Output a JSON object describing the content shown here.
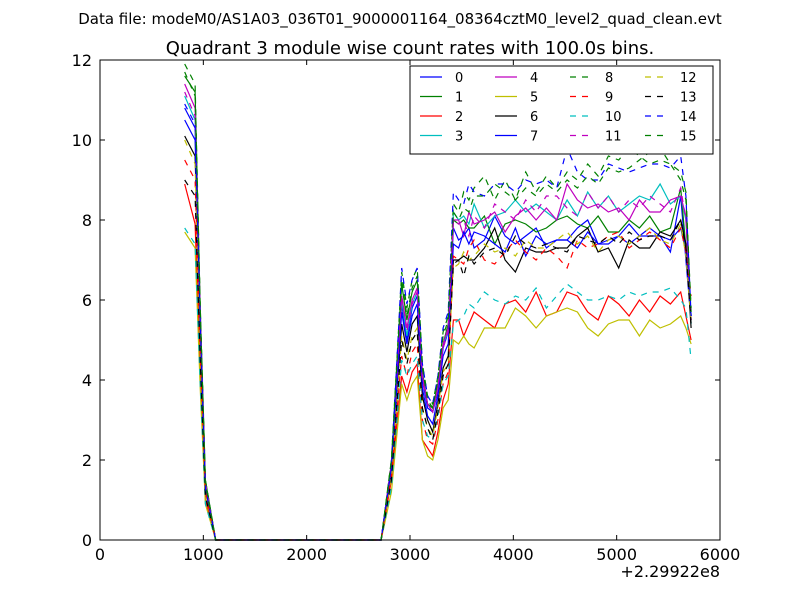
{
  "header": {
    "data_file": "Data file: modeM0/AS1A03_036T01_9000001164_08364cztM0_level2_quad_clean.evt"
  },
  "chart_data": {
    "type": "line",
    "title": "Quadrant 3 module wise count rates with 100.0s bins.",
    "xlabel": "",
    "ylabel": "",
    "x_offset_label": "+2.29922e8",
    "xlim": [
      0,
      6000
    ],
    "ylim": [
      0,
      12
    ],
    "x_ticks": [
      0,
      1000,
      2000,
      3000,
      4000,
      5000,
      6000
    ],
    "x_tick_labels": [
      "0",
      "1000",
      "2000",
      "3000",
      "4000",
      "5000",
      "6000"
    ],
    "y_ticks": [
      0,
      2,
      4,
      6,
      8,
      10,
      12
    ],
    "y_tick_labels": [
      "0",
      "2",
      "4",
      "6",
      "8",
      "10",
      "12"
    ],
    "grid": false,
    "legend_position": "top-right",
    "legend_columns": 4,
    "x": [
      820,
      920,
      970,
      1020,
      1120,
      1220,
      1320,
      1420,
      1520,
      1620,
      1720,
      1820,
      1920,
      2020,
      2120,
      2220,
      2320,
      2420,
      2520,
      2620,
      2720,
      2820,
      2920,
      2970,
      3020,
      3070,
      3120,
      3170,
      3220,
      3270,
      3320,
      3370,
      3420,
      3470,
      3520,
      3570,
      3620,
      3720,
      3820,
      3920,
      4020,
      4120,
      4220,
      4320,
      4420,
      4520,
      4620,
      4720,
      4820,
      4920,
      5020,
      5120,
      5220,
      5320,
      5420,
      5520,
      5620,
      5670,
      5720
    ],
    "series": [
      {
        "name": "0",
        "color": "#0000ff",
        "dash": "solid",
        "values": [
          10.8,
          10.3,
          5.5,
          1.3,
          0,
          0,
          0,
          0,
          0,
          0,
          0,
          0,
          0,
          0,
          0,
          0,
          0,
          0,
          0,
          0,
          0,
          1.8,
          5.9,
          5.0,
          5.8,
          6.1,
          4.0,
          3.3,
          3.2,
          3.7,
          4.8,
          5.2,
          7.8,
          7.5,
          7.6,
          7.8,
          7.3,
          7.5,
          8.1,
          7.6,
          7.4,
          7.6,
          7.8,
          7.3,
          7.5,
          7.5,
          7.8,
          8.0,
          7.4,
          7.5,
          7.6,
          7.9,
          7.6,
          7.8,
          7.6,
          7.2,
          8.6,
          7.0,
          5.5
        ]
      },
      {
        "name": "1",
        "color": "#008000",
        "dash": "solid",
        "values": [
          11.6,
          11.2,
          5.8,
          1.5,
          0,
          0,
          0,
          0,
          0,
          0,
          0,
          0,
          0,
          0,
          0,
          0,
          0,
          0,
          0,
          0,
          0,
          1.9,
          6.4,
          5.5,
          6.2,
          6.5,
          4.2,
          3.4,
          3.3,
          3.9,
          4.9,
          5.4,
          8.0,
          7.9,
          8.0,
          7.8,
          7.8,
          8.1,
          7.4,
          7.9,
          8.0,
          7.9,
          7.7,
          7.8,
          8.0,
          8.1,
          7.9,
          7.8,
          8.1,
          7.7,
          7.7,
          8.0,
          7.8,
          8.1,
          7.7,
          7.8,
          8.8,
          7.3,
          5.6
        ]
      },
      {
        "name": "2",
        "color": "#ff0000",
        "dash": "solid",
        "values": [
          8.9,
          7.9,
          4.2,
          1.0,
          0,
          0,
          0,
          0,
          0,
          0,
          0,
          0,
          0,
          0,
          0,
          0,
          0,
          0,
          0,
          0,
          0,
          1.5,
          4.1,
          3.7,
          4.2,
          4.4,
          2.5,
          2.3,
          2.1,
          2.7,
          3.5,
          3.9,
          5.5,
          5.5,
          5.1,
          5.4,
          5.7,
          5.5,
          5.3,
          5.9,
          6.0,
          5.7,
          6.2,
          5.6,
          5.7,
          6.2,
          6.1,
          5.7,
          5.5,
          6.1,
          5.9,
          5.6,
          6.0,
          5.7,
          6.1,
          5.9,
          6.2,
          5.6,
          5.0
        ]
      },
      {
        "name": "3",
        "color": "#00bfbf",
        "dash": "solid",
        "values": [
          11.1,
          10.5,
          5.6,
          1.4,
          0,
          0,
          0,
          0,
          0,
          0,
          0,
          0,
          0,
          0,
          0,
          0,
          0,
          0,
          0,
          0,
          0,
          1.9,
          6.0,
          5.1,
          5.9,
          6.2,
          4.1,
          3.4,
          3.2,
          3.8,
          4.9,
          5.2,
          8.2,
          8.0,
          8.1,
          7.9,
          8.4,
          7.8,
          8.1,
          8.2,
          8.5,
          8.2,
          8.4,
          8.2,
          8.0,
          8.5,
          8.1,
          8.7,
          8.3,
          8.6,
          8.2,
          8.4,
          8.6,
          8.5,
          8.9,
          8.4,
          8.6,
          8.0,
          5.4
        ]
      },
      {
        "name": "4",
        "color": "#bf00bf",
        "dash": "solid",
        "values": [
          11.4,
          10.8,
          5.7,
          1.4,
          0,
          0,
          0,
          0,
          0,
          0,
          0,
          0,
          0,
          0,
          0,
          0,
          0,
          0,
          0,
          0,
          0,
          1.9,
          6.1,
          5.3,
          6.0,
          6.3,
          4.1,
          3.4,
          3.2,
          3.8,
          4.9,
          5.3,
          8.0,
          8.0,
          7.6,
          8.2,
          7.9,
          8.0,
          8.2,
          7.7,
          8.1,
          8.3,
          8.0,
          8.3,
          8.0,
          8.9,
          8.5,
          8.3,
          8.4,
          8.2,
          8.3,
          8.0,
          8.5,
          8.2,
          8.2,
          8.5,
          8.6,
          8.1,
          5.5
        ]
      },
      {
        "name": "5",
        "color": "#bfbf00",
        "dash": "solid",
        "values": [
          7.7,
          7.3,
          3.8,
          0.9,
          0,
          0,
          0,
          0,
          0,
          0,
          0,
          0,
          0,
          0,
          0,
          0,
          0,
          0,
          0,
          0,
          0,
          1.2,
          3.9,
          3.5,
          3.9,
          4.1,
          2.5,
          2.1,
          2.0,
          2.5,
          3.3,
          3.5,
          5.0,
          4.9,
          5.1,
          4.9,
          4.8,
          5.3,
          5.3,
          5.3,
          5.8,
          5.6,
          5.3,
          5.6,
          5.7,
          5.8,
          5.7,
          5.3,
          5.1,
          5.4,
          5.5,
          5.5,
          5.1,
          5.5,
          5.3,
          5.4,
          5.6,
          5.3,
          4.9
        ]
      },
      {
        "name": "6",
        "color": "#000000",
        "dash": "solid",
        "values": [
          10.1,
          9.6,
          5.0,
          1.2,
          0,
          0,
          0,
          0,
          0,
          0,
          0,
          0,
          0,
          0,
          0,
          0,
          0,
          0,
          0,
          0,
          0,
          1.7,
          5.4,
          4.7,
          5.4,
          5.6,
          3.6,
          3.0,
          2.7,
          3.4,
          4.3,
          4.6,
          7.0,
          7.0,
          7.1,
          7.0,
          7.0,
          7.3,
          7.8,
          7.0,
          6.7,
          7.3,
          7.2,
          7.2,
          7.3,
          7.3,
          7.6,
          7.8,
          7.2,
          7.3,
          6.8,
          7.5,
          7.3,
          7.3,
          7.7,
          7.6,
          8.0,
          7.4,
          5.3
        ]
      },
      {
        "name": "7",
        "color": "#0000ff",
        "dash": "solid",
        "values": [
          10.5,
          10.0,
          5.2,
          1.3,
          0,
          0,
          0,
          0,
          0,
          0,
          0,
          0,
          0,
          0,
          0,
          0,
          0,
          0,
          0,
          0,
          0,
          1.8,
          5.7,
          4.9,
          5.6,
          5.9,
          3.8,
          3.1,
          2.9,
          3.6,
          4.6,
          4.9,
          7.4,
          7.3,
          7.7,
          7.4,
          7.7,
          7.6,
          7.4,
          7.2,
          7.8,
          7.1,
          7.6,
          7.4,
          7.5,
          7.5,
          7.3,
          7.7,
          7.4,
          7.4,
          7.6,
          7.4,
          7.6,
          7.6,
          7.6,
          7.5,
          7.8,
          7.2,
          5.6
        ]
      },
      {
        "name": "8",
        "color": "#008000",
        "dash": "dashed",
        "values": [
          11.9,
          11.4,
          5.9,
          1.5,
          0,
          0,
          0,
          0,
          0,
          0,
          0,
          0,
          0,
          0,
          0,
          0,
          0,
          0,
          0,
          0,
          0,
          2.0,
          6.7,
          5.8,
          6.5,
          6.8,
          4.4,
          3.6,
          3.4,
          4.1,
          5.2,
          5.6,
          8.4,
          8.2,
          8.7,
          8.5,
          8.8,
          9.1,
          8.5,
          9.0,
          8.5,
          9.2,
          8.7,
          9.1,
          8.8,
          9.2,
          9.0,
          9.4,
          9.1,
          9.6,
          9.5,
          9.8,
          9.6,
          9.4,
          9.5,
          9.4,
          9.2,
          8.7,
          5.7
        ]
      },
      {
        "name": "9",
        "color": "#ff0000",
        "dash": "dashed",
        "values": [
          9.5,
          9.0,
          4.7,
          1.2,
          0,
          0,
          0,
          0,
          0,
          0,
          0,
          0,
          0,
          0,
          0,
          0,
          0,
          0,
          0,
          0,
          0,
          1.6,
          4.6,
          4.1,
          4.7,
          4.9,
          3.0,
          2.5,
          2.4,
          3.0,
          3.9,
          4.2,
          7.1,
          7.0,
          6.9,
          7.3,
          7.5,
          7.0,
          6.9,
          7.2,
          7.5,
          7.2,
          7.0,
          7.3,
          7.1,
          6.8,
          7.5,
          7.3,
          7.4,
          7.6,
          7.7,
          7.3,
          7.5,
          7.7,
          7.5,
          7.3,
          7.8,
          7.2,
          6.1
        ]
      },
      {
        "name": "10",
        "color": "#00bfbf",
        "dash": "dashed",
        "values": [
          7.8,
          7.4,
          3.9,
          0.9,
          0,
          0,
          0,
          0,
          0,
          0,
          0,
          0,
          0,
          0,
          0,
          0,
          0,
          0,
          0,
          0,
          0,
          1.3,
          4.5,
          4.1,
          4.4,
          4.6,
          3.0,
          2.6,
          2.5,
          3.1,
          3.9,
          4.1,
          5.4,
          5.5,
          5.6,
          5.9,
          5.8,
          6.2,
          6.0,
          5.9,
          6.1,
          6.0,
          6.3,
          5.8,
          6.1,
          6.4,
          6.2,
          6.0,
          6.0,
          6.1,
          6.0,
          6.2,
          6.1,
          6.2,
          6.2,
          6.3,
          6.0,
          5.8,
          4.5
        ]
      },
      {
        "name": "11",
        "color": "#bf00bf",
        "dash": "dashed",
        "values": [
          11.2,
          10.6,
          5.6,
          1.4,
          0,
          0,
          0,
          0,
          0,
          0,
          0,
          0,
          0,
          0,
          0,
          0,
          0,
          0,
          0,
          0,
          0,
          1.9,
          6.1,
          5.2,
          5.9,
          6.2,
          4.0,
          3.4,
          3.2,
          3.8,
          4.8,
          5.2,
          8.0,
          7.9,
          8.0,
          7.6,
          8.1,
          7.8,
          8.4,
          8.2,
          8.0,
          8.5,
          8.2,
          8.6,
          8.6,
          8.3,
          8.1,
          8.7,
          8.3,
          8.6,
          8.2,
          8.5,
          8.3,
          8.6,
          8.4,
          8.2,
          8.8,
          8.0,
          5.5
        ]
      },
      {
        "name": "12",
        "color": "#bfbf00",
        "dash": "dashed",
        "values": [
          10.0,
          9.4,
          4.9,
          1.2,
          0,
          0,
          0,
          0,
          0,
          0,
          0,
          0,
          0,
          0,
          0,
          0,
          0,
          0,
          0,
          0,
          0,
          1.6,
          5.1,
          4.5,
          5.1,
          5.3,
          3.3,
          2.8,
          2.6,
          3.3,
          4.2,
          4.4,
          6.8,
          6.9,
          7.2,
          7.0,
          7.1,
          7.4,
          7.2,
          7.3,
          7.1,
          7.5,
          7.3,
          7.3,
          7.5,
          7.7,
          7.4,
          7.6,
          7.2,
          7.5,
          7.6,
          7.4,
          7.6,
          7.8,
          7.5,
          7.4,
          7.9,
          7.1,
          5.5
        ]
      },
      {
        "name": "13",
        "color": "#000000",
        "dash": "dashed",
        "values": [
          9.0,
          8.6,
          4.5,
          1.1,
          0,
          0,
          0,
          0,
          0,
          0,
          0,
          0,
          0,
          0,
          0,
          0,
          0,
          0,
          0,
          0,
          0,
          1.5,
          5.0,
          4.4,
          5.0,
          5.2,
          3.3,
          2.8,
          2.5,
          3.2,
          4.1,
          4.4,
          6.9,
          7.0,
          6.6,
          7.1,
          6.9,
          7.2,
          7.3,
          7.1,
          7.6,
          7.4,
          7.3,
          7.4,
          7.3,
          7.2,
          7.6,
          7.5,
          7.4,
          7.6,
          7.4,
          7.7,
          7.5,
          7.6,
          7.6,
          7.5,
          8.0,
          7.3,
          5.4
        ]
      },
      {
        "name": "14",
        "color": "#0000ff",
        "dash": "dashed",
        "values": [
          10.9,
          10.4,
          5.4,
          1.3,
          0,
          0,
          0,
          0,
          0,
          0,
          0,
          0,
          0,
          0,
          0,
          0,
          0,
          0,
          0,
          0,
          0,
          1.8,
          6.8,
          5.9,
          6.5,
          6.8,
          4.4,
          3.6,
          3.4,
          4.1,
          5.3,
          5.7,
          8.7,
          8.5,
          8.4,
          8.9,
          8.7,
          8.6,
          8.9,
          8.9,
          8.7,
          9.0,
          8.9,
          9.0,
          8.8,
          9.8,
          9.2,
          9.0,
          9.0,
          9.4,
          9.3,
          9.2,
          9.3,
          9.4,
          9.4,
          9.3,
          9.6,
          8.6,
          5.6
        ]
      },
      {
        "name": "15",
        "color": "#008000",
        "dash": "dashed",
        "values": [
          11.7,
          11.1,
          5.8,
          1.4,
          0,
          0,
          0,
          0,
          0,
          0,
          0,
          0,
          0,
          0,
          0,
          0,
          0,
          0,
          0,
          0,
          0,
          2.0,
          6.5,
          5.6,
          6.3,
          6.6,
          4.3,
          3.5,
          3.3,
          4.0,
          5.1,
          5.5,
          8.2,
          8.0,
          8.3,
          8.2,
          8.6,
          8.6,
          8.9,
          8.7,
          8.5,
          8.8,
          8.6,
          8.9,
          8.7,
          9.0,
          8.8,
          9.1,
          8.9,
          9.3,
          9.2,
          9.3,
          9.5,
          9.7,
          9.8,
          9.4,
          9.0,
          8.5,
          5.8
        ]
      }
    ]
  }
}
